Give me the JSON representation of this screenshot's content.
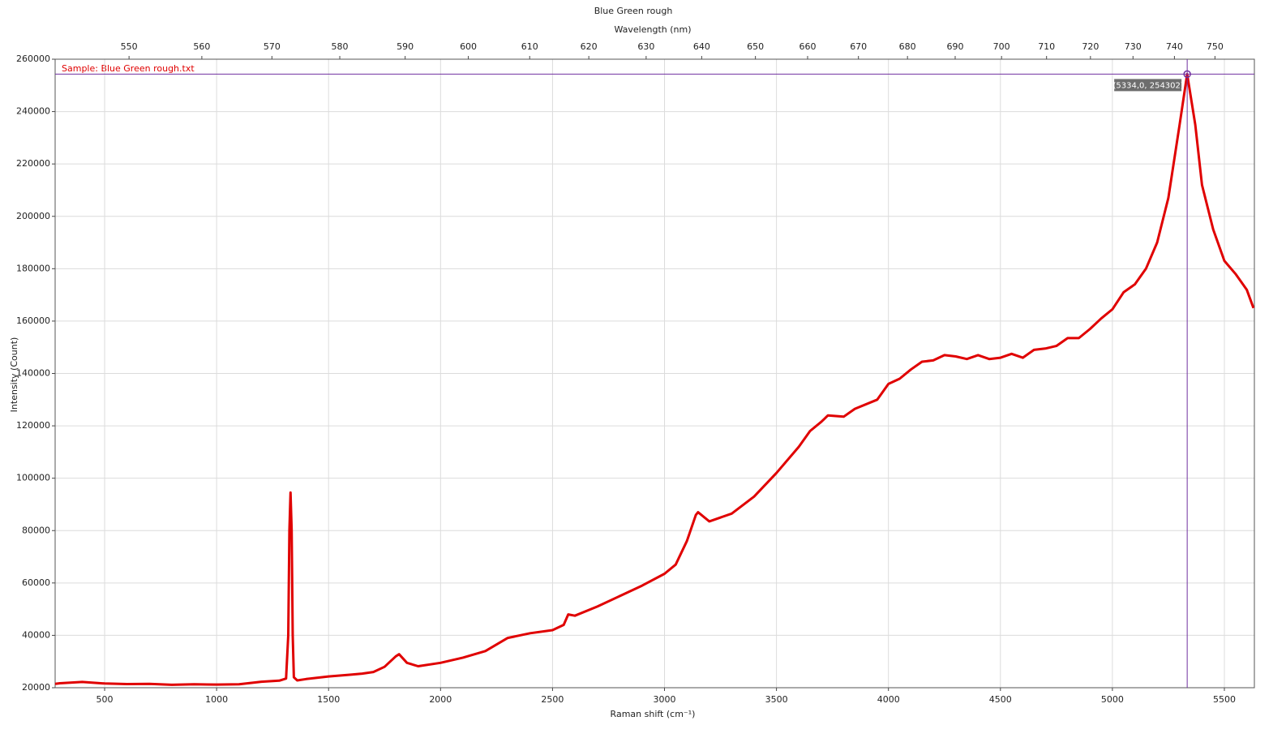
{
  "chart_data": {
    "type": "line",
    "title": "Blue Green rough",
    "x_label": "Raman shift (cm⁻¹)",
    "y_label": "Intensity (Count)",
    "x2_label": "Wavelength (nm)",
    "sample_label": "Sample: Blue Green rough.txt",
    "xlim": [
      279,
      5634
    ],
    "ylim": [
      20000,
      260000
    ],
    "xticks": [
      500,
      1000,
      1500,
      2000,
      2500,
      3000,
      3500,
      4000,
      4500,
      5000,
      5500
    ],
    "yticks": [
      20000,
      40000,
      60000,
      80000,
      100000,
      120000,
      140000,
      160000,
      180000,
      200000,
      220000,
      240000,
      260000
    ],
    "x2ticks": [
      {
        "value": 609,
        "label": "550"
      },
      {
        "value": 934,
        "label": "560"
      },
      {
        "value": 1247,
        "label": "570"
      },
      {
        "value": 1550,
        "label": "580"
      },
      {
        "value": 1842,
        "label": "590"
      },
      {
        "value": 2124,
        "label": "600"
      },
      {
        "value": 2398,
        "label": "610"
      },
      {
        "value": 2662,
        "label": "620"
      },
      {
        "value": 2918,
        "label": "630"
      },
      {
        "value": 3166,
        "label": "640"
      },
      {
        "value": 3406,
        "label": "650"
      },
      {
        "value": 3639,
        "label": "660"
      },
      {
        "value": 3866,
        "label": "670"
      },
      {
        "value": 4085,
        "label": "680"
      },
      {
        "value": 4298,
        "label": "690"
      },
      {
        "value": 4505,
        "label": "700"
      },
      {
        "value": 4706,
        "label": "710"
      },
      {
        "value": 4902,
        "label": "720"
      },
      {
        "value": 5092,
        "label": "730"
      },
      {
        "value": 5277,
        "label": "740"
      },
      {
        "value": 5458,
        "label": "750"
      }
    ],
    "grid": true,
    "x": [
      279,
      300,
      400,
      500,
      600,
      700,
      800,
      900,
      1000,
      1100,
      1200,
      1280,
      1310,
      1320,
      1325,
      1330,
      1335,
      1340,
      1345,
      1360,
      1400,
      1500,
      1600,
      1650,
      1700,
      1750,
      1800,
      1815,
      1850,
      1900,
      2000,
      2100,
      2200,
      2300,
      2400,
      2500,
      2550,
      2570,
      2600,
      2700,
      2800,
      2900,
      3000,
      3050,
      3100,
      3140,
      3150,
      3200,
      3300,
      3400,
      3500,
      3600,
      3650,
      3700,
      3730,
      3800,
      3850,
      3950,
      4000,
      4050,
      4100,
      4150,
      4200,
      4250,
      4300,
      4350,
      4400,
      4450,
      4500,
      4550,
      4600,
      4650,
      4700,
      4750,
      4800,
      4850,
      4900,
      4950,
      5000,
      5050,
      5100,
      5150,
      5200,
      5250,
      5300,
      5334,
      5370,
      5400,
      5450,
      5500,
      5550,
      5600,
      5630
    ],
    "series": [
      {
        "name": "Blue Green rough",
        "color": "#e00000",
        "values": [
          21500,
          21700,
          22200,
          21600,
          21400,
          21500,
          21100,
          21300,
          21200,
          21300,
          22300,
          22700,
          23500,
          40000,
          80000,
          94500,
          80000,
          40000,
          24000,
          22800,
          23300,
          24300,
          25000,
          25400,
          26000,
          28000,
          32000,
          32800,
          29500,
          28200,
          29500,
          31500,
          34000,
          39000,
          40800,
          42000,
          44000,
          48000,
          47500,
          51000,
          55000,
          59000,
          63500,
          67000,
          76000,
          86000,
          87000,
          83500,
          86500,
          93000,
          102000,
          112000,
          118000,
          121500,
          124000,
          123500,
          126500,
          130000,
          136000,
          138000,
          141500,
          144500,
          145000,
          147000,
          146500,
          145500,
          147000,
          145500,
          146000,
          147500,
          146000,
          149000,
          149500,
          150500,
          153500,
          153500,
          157000,
          161000,
          164500,
          171000,
          174000,
          180000,
          190000,
          207000,
          235000,
          254302,
          235000,
          212000,
          195000,
          183000,
          178000,
          172000,
          165000
        ]
      }
    ],
    "cursor": {
      "x": 5334,
      "y": 254302,
      "label": "(5334,0, 254302)",
      "color": "#7030a0"
    }
  }
}
